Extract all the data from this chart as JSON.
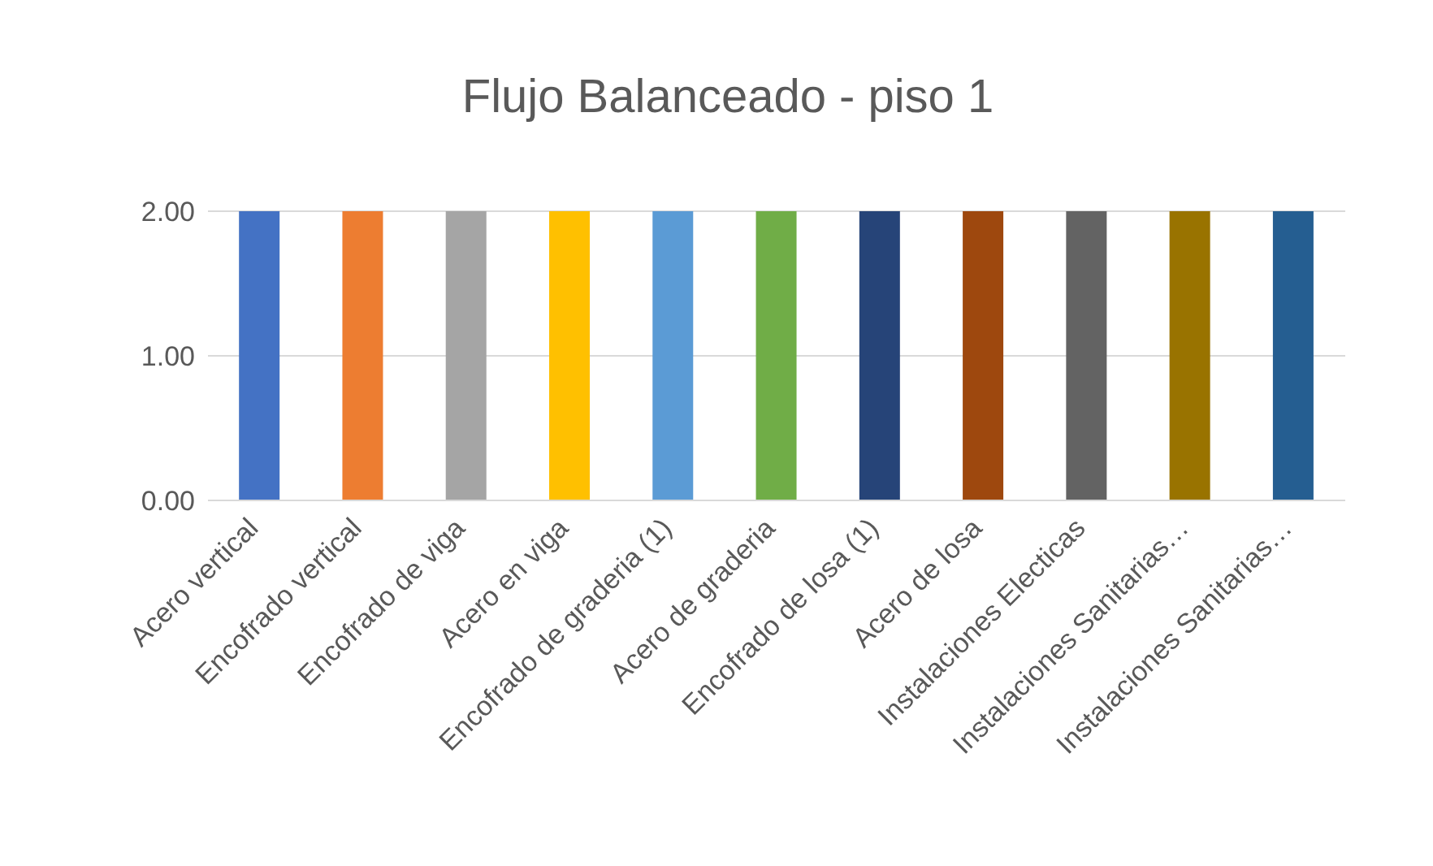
{
  "chart_data": {
    "type": "bar",
    "title": "Flujo Balanceado - piso 1",
    "categories": [
      "Acero vertical",
      "Encofrado vertical",
      "Encofrado de viga",
      "Acero en viga",
      "Encofrado de graderia (1)",
      "Acero de graderia",
      "Encofrado de losa (1)",
      "Acero de losa",
      "Instalaciones Electicas",
      "Instalaciones Sanitarias…",
      "Instalaciones Sanitarias…"
    ],
    "values": [
      2,
      2,
      2,
      2,
      2,
      2,
      2,
      2,
      2,
      2,
      2
    ],
    "colors": [
      "#4472c4",
      "#ed7d31",
      "#a5a5a5",
      "#ffc000",
      "#5b9bd5",
      "#70ad47",
      "#264478",
      "#9e480e",
      "#636363",
      "#997300",
      "#255e91"
    ],
    "ylim": [
      0,
      2
    ],
    "yticks": [
      {
        "value": 0,
        "label": "0.00"
      },
      {
        "value": 1,
        "label": "1.00"
      },
      {
        "value": 2,
        "label": "2.00"
      }
    ],
    "grid": "y"
  }
}
